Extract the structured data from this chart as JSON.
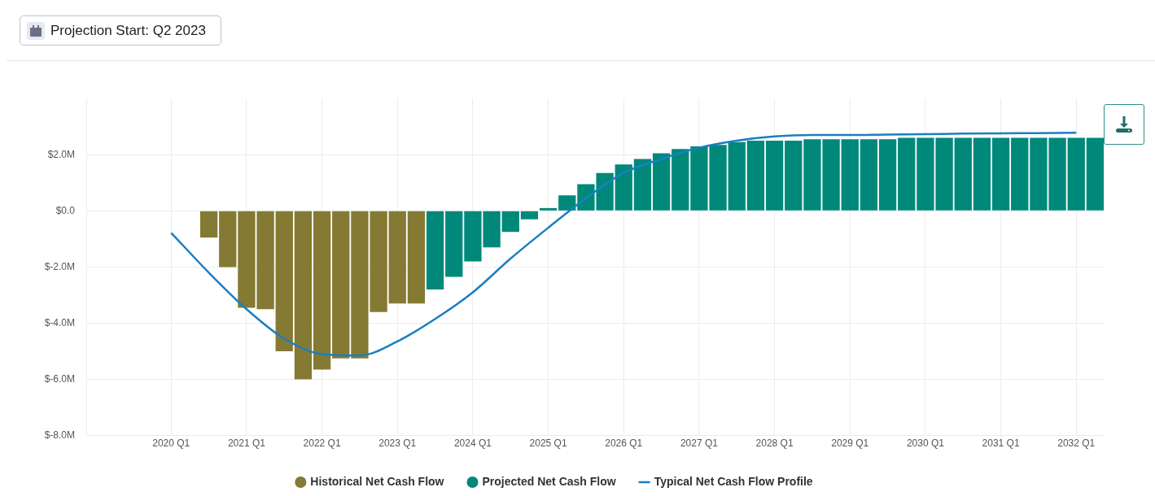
{
  "chart_data": {
    "type": "bar",
    "annotations": [
      "Projection Start: Q2 2023"
    ],
    "categories": [
      null,
      null,
      null,
      null,
      "2020 Q1",
      null,
      null,
      null,
      "2021 Q1",
      null,
      null,
      null,
      "2022 Q1",
      null,
      null,
      null,
      "2023 Q1",
      null,
      null,
      null,
      "2024 Q1",
      null,
      null,
      null,
      "2025 Q1",
      null,
      null,
      null,
      "2026 Q1",
      null,
      null,
      null,
      "2027 Q1",
      null,
      null,
      null,
      "2028 Q1",
      null,
      null,
      null,
      "2029 Q1",
      null,
      null,
      null,
      "2030 Q1",
      null,
      null,
      null,
      "2031 Q1",
      null,
      null,
      null,
      "2032 Q1",
      null
    ],
    "ylim": [
      -8,
      4
    ],
    "yticks": [
      {
        "value": -8,
        "label": "$-8.0M"
      },
      {
        "value": -6,
        "label": "$-6.0M"
      },
      {
        "value": -4,
        "label": "$-4.0M"
      },
      {
        "value": -2,
        "label": "$-2.0M"
      },
      {
        "value": 0,
        "label": "$0.0"
      },
      {
        "value": 2,
        "label": "$2.0M"
      }
    ],
    "grid": true,
    "legend": "bottom",
    "series": [
      {
        "name": "Historical Net Cash Flow",
        "color": "#857a33",
        "values": [
          null,
          null,
          null,
          null,
          null,
          null,
          -0.95,
          -2.0,
          -3.45,
          -3.5,
          -5.0,
          -6.0,
          -5.65,
          -5.25,
          -5.25,
          -3.6,
          -3.3,
          -3.3,
          null,
          null,
          null,
          null,
          null,
          null,
          null,
          null,
          null,
          null,
          null,
          null,
          null,
          null,
          null,
          null,
          null,
          null,
          null,
          null,
          null,
          null,
          null,
          null,
          null,
          null,
          null,
          null,
          null,
          null,
          null,
          null,
          null,
          null,
          null,
          null
        ]
      },
      {
        "name": "Projected Net Cash Flow",
        "color": "#00897b",
        "values": [
          null,
          null,
          null,
          null,
          null,
          null,
          null,
          null,
          null,
          null,
          null,
          null,
          null,
          null,
          null,
          null,
          null,
          null,
          -2.8,
          -2.35,
          -1.8,
          -1.3,
          -0.75,
          -0.3,
          0.1,
          0.55,
          0.95,
          1.35,
          1.65,
          1.85,
          2.05,
          2.2,
          2.3,
          2.35,
          2.45,
          2.5,
          2.5,
          2.5,
          2.55,
          2.55,
          2.55,
          2.55,
          2.55,
          2.6,
          2.6,
          2.6,
          2.6,
          2.6,
          2.6,
          2.6,
          2.6,
          2.6,
          2.6,
          2.6
        ]
      },
      {
        "name": "Typical Net Cash Flow Profile",
        "type": "line",
        "color": "#1a7fc1",
        "values": [
          null,
          null,
          null,
          null,
          -0.78,
          null,
          -2.2,
          null,
          -3.5,
          null,
          -4.55,
          null,
          -5.1,
          null,
          -5.15,
          null,
          -4.65,
          null,
          -3.85,
          null,
          -2.9,
          null,
          -1.7,
          null,
          -0.6,
          null,
          0.45,
          null,
          1.35,
          null,
          1.85,
          null,
          2.25,
          null,
          2.5,
          null,
          2.65,
          null,
          2.7,
          null,
          2.7,
          null,
          2.72,
          null,
          2.73,
          null,
          2.75,
          null,
          2.76,
          null,
          2.77,
          null,
          2.78,
          null
        ]
      }
    ]
  }
}
